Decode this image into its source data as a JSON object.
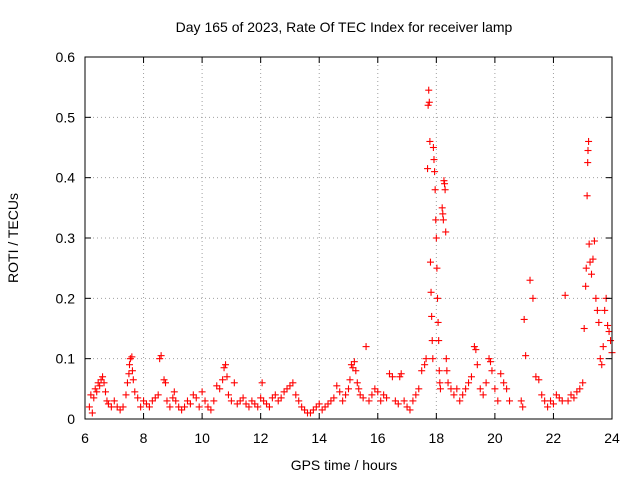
{
  "chart_data": {
    "type": "scatter",
    "title": "Day 165 of 2023, Rate Of TEC Index for receiver lamp",
    "xlabel": "GPS time / hours",
    "ylabel": "ROTI / TECUs",
    "xlim": [
      6,
      24
    ],
    "ylim": [
      0,
      0.6
    ],
    "xticks": [
      6,
      8,
      10,
      12,
      14,
      16,
      18,
      20,
      22,
      24
    ],
    "yticks": [
      0,
      0.1,
      0.2,
      0.3,
      0.4,
      0.5,
      0.6
    ],
    "xtick_labels": [
      "6",
      "8",
      "10",
      "12",
      "14",
      "16",
      "18",
      "20",
      "22",
      "24"
    ],
    "ytick_labels": [
      "0",
      "0.1",
      "0.2",
      "0.3",
      "0.4",
      "0.5",
      "0.6"
    ],
    "grid": true,
    "marker": "plus",
    "color": "#ff0000",
    "series": [
      {
        "name": "ROTI",
        "points": [
          [
            6.15,
            0.02
          ],
          [
            6.2,
            0.04
          ],
          [
            6.25,
            0.01
          ],
          [
            6.3,
            0.035
          ],
          [
            6.35,
            0.05
          ],
          [
            6.4,
            0.045
          ],
          [
            6.45,
            0.06
          ],
          [
            6.5,
            0.055
          ],
          [
            6.55,
            0.065
          ],
          [
            6.6,
            0.07
          ],
          [
            6.65,
            0.06
          ],
          [
            6.7,
            0.045
          ],
          [
            6.75,
            0.03
          ],
          [
            6.8,
            0.025
          ],
          [
            6.9,
            0.02
          ],
          [
            7.0,
            0.03
          ],
          [
            7.1,
            0.02
          ],
          [
            7.2,
            0.015
          ],
          [
            7.3,
            0.02
          ],
          [
            7.4,
            0.04
          ],
          [
            7.45,
            0.06
          ],
          [
            7.5,
            0.075
          ],
          [
            7.52,
            0.09
          ],
          [
            7.55,
            0.1
          ],
          [
            7.6,
            0.103
          ],
          [
            7.62,
            0.08
          ],
          [
            7.65,
            0.065
          ],
          [
            7.7,
            0.045
          ],
          [
            7.8,
            0.035
          ],
          [
            7.9,
            0.02
          ],
          [
            8.0,
            0.03
          ],
          [
            8.1,
            0.025
          ],
          [
            8.2,
            0.02
          ],
          [
            8.3,
            0.03
          ],
          [
            8.4,
            0.035
          ],
          [
            8.5,
            0.04
          ],
          [
            8.55,
            0.1
          ],
          [
            8.6,
            0.105
          ],
          [
            8.7,
            0.065
          ],
          [
            8.75,
            0.06
          ],
          [
            8.8,
            0.03
          ],
          [
            8.9,
            0.02
          ],
          [
            9.0,
            0.035
          ],
          [
            9.05,
            0.045
          ],
          [
            9.1,
            0.03
          ],
          [
            9.2,
            0.02
          ],
          [
            9.3,
            0.015
          ],
          [
            9.4,
            0.02
          ],
          [
            9.5,
            0.03
          ],
          [
            9.6,
            0.025
          ],
          [
            9.7,
            0.04
          ],
          [
            9.8,
            0.035
          ],
          [
            9.9,
            0.02
          ],
          [
            10.0,
            0.045
          ],
          [
            10.1,
            0.03
          ],
          [
            10.2,
            0.02
          ],
          [
            10.3,
            0.015
          ],
          [
            10.4,
            0.03
          ],
          [
            10.5,
            0.055
          ],
          [
            10.6,
            0.05
          ],
          [
            10.7,
            0.065
          ],
          [
            10.75,
            0.085
          ],
          [
            10.8,
            0.09
          ],
          [
            10.85,
            0.07
          ],
          [
            10.9,
            0.04
          ],
          [
            11.0,
            0.03
          ],
          [
            11.1,
            0.06
          ],
          [
            11.2,
            0.025
          ],
          [
            11.3,
            0.03
          ],
          [
            11.4,
            0.035
          ],
          [
            11.5,
            0.025
          ],
          [
            11.6,
            0.02
          ],
          [
            11.7,
            0.03
          ],
          [
            11.8,
            0.025
          ],
          [
            11.9,
            0.02
          ],
          [
            12.0,
            0.035
          ],
          [
            12.05,
            0.06
          ],
          [
            12.1,
            0.03
          ],
          [
            12.2,
            0.025
          ],
          [
            12.3,
            0.02
          ],
          [
            12.4,
            0.035
          ],
          [
            12.5,
            0.04
          ],
          [
            12.6,
            0.03
          ],
          [
            12.7,
            0.035
          ],
          [
            12.8,
            0.045
          ],
          [
            12.9,
            0.05
          ],
          [
            13.0,
            0.055
          ],
          [
            13.1,
            0.06
          ],
          [
            13.2,
            0.04
          ],
          [
            13.3,
            0.03
          ],
          [
            13.4,
            0.02
          ],
          [
            13.5,
            0.015
          ],
          [
            13.6,
            0.01
          ],
          [
            13.7,
            0.01
          ],
          [
            13.8,
            0.015
          ],
          [
            13.9,
            0.02
          ],
          [
            14.0,
            0.025
          ],
          [
            14.1,
            0.015
          ],
          [
            14.2,
            0.02
          ],
          [
            14.3,
            0.025
          ],
          [
            14.4,
            0.03
          ],
          [
            14.5,
            0.035
          ],
          [
            14.6,
            0.055
          ],
          [
            14.7,
            0.045
          ],
          [
            14.8,
            0.03
          ],
          [
            14.9,
            0.04
          ],
          [
            15.0,
            0.05
          ],
          [
            15.05,
            0.065
          ],
          [
            15.1,
            0.09
          ],
          [
            15.15,
            0.085
          ],
          [
            15.2,
            0.095
          ],
          [
            15.25,
            0.08
          ],
          [
            15.3,
            0.06
          ],
          [
            15.35,
            0.05
          ],
          [
            15.4,
            0.04
          ],
          [
            15.5,
            0.035
          ],
          [
            15.6,
            0.12
          ],
          [
            15.7,
            0.03
          ],
          [
            15.8,
            0.04
          ],
          [
            15.9,
            0.05
          ],
          [
            16.0,
            0.045
          ],
          [
            16.1,
            0.03
          ],
          [
            16.2,
            0.04
          ],
          [
            16.3,
            0.035
          ],
          [
            16.4,
            0.075
          ],
          [
            16.5,
            0.07
          ],
          [
            16.6,
            0.03
          ],
          [
            16.7,
            0.025
          ],
          [
            16.75,
            0.07
          ],
          [
            16.8,
            0.075
          ],
          [
            16.9,
            0.03
          ],
          [
            17.0,
            0.02
          ],
          [
            17.1,
            0.015
          ],
          [
            17.2,
            0.03
          ],
          [
            17.3,
            0.04
          ],
          [
            17.4,
            0.05
          ],
          [
            17.5,
            0.08
          ],
          [
            17.6,
            0.09
          ],
          [
            17.65,
            0.1
          ],
          [
            17.7,
            0.415
          ],
          [
            17.72,
            0.52
          ],
          [
            17.74,
            0.545
          ],
          [
            17.76,
            0.525
          ],
          [
            17.78,
            0.46
          ],
          [
            17.8,
            0.26
          ],
          [
            17.82,
            0.21
          ],
          [
            17.84,
            0.17
          ],
          [
            17.86,
            0.13
          ],
          [
            17.88,
            0.1
          ],
          [
            17.9,
            0.45
          ],
          [
            17.92,
            0.43
          ],
          [
            17.94,
            0.41
          ],
          [
            17.96,
            0.38
          ],
          [
            17.98,
            0.33
          ],
          [
            18.0,
            0.3
          ],
          [
            18.02,
            0.25
          ],
          [
            18.04,
            0.2
          ],
          [
            18.06,
            0.16
          ],
          [
            18.08,
            0.13
          ],
          [
            18.1,
            0.08
          ],
          [
            18.12,
            0.06
          ],
          [
            18.14,
            0.05
          ],
          [
            18.2,
            0.35
          ],
          [
            18.22,
            0.34
          ],
          [
            18.24,
            0.33
          ],
          [
            18.26,
            0.395
          ],
          [
            18.28,
            0.39
          ],
          [
            18.3,
            0.38
          ],
          [
            18.32,
            0.31
          ],
          [
            18.34,
            0.1
          ],
          [
            18.36,
            0.08
          ],
          [
            18.4,
            0.06
          ],
          [
            18.5,
            0.05
          ],
          [
            18.6,
            0.04
          ],
          [
            18.7,
            0.05
          ],
          [
            18.8,
            0.03
          ],
          [
            18.9,
            0.04
          ],
          [
            19.0,
            0.05
          ],
          [
            19.1,
            0.06
          ],
          [
            19.2,
            0.07
          ],
          [
            19.3,
            0.12
          ],
          [
            19.35,
            0.115
          ],
          [
            19.4,
            0.09
          ],
          [
            19.5,
            0.05
          ],
          [
            19.6,
            0.04
          ],
          [
            19.7,
            0.06
          ],
          [
            19.8,
            0.1
          ],
          [
            19.85,
            0.095
          ],
          [
            19.9,
            0.08
          ],
          [
            20.0,
            0.05
          ],
          [
            20.1,
            0.03
          ],
          [
            20.2,
            0.075
          ],
          [
            20.3,
            0.06
          ],
          [
            20.4,
            0.05
          ],
          [
            20.5,
            0.03
          ],
          [
            20.9,
            0.03
          ],
          [
            20.95,
            0.02
          ],
          [
            21.0,
            0.165
          ],
          [
            21.05,
            0.105
          ],
          [
            21.2,
            0.23
          ],
          [
            21.3,
            0.2
          ],
          [
            21.4,
            0.07
          ],
          [
            21.5,
            0.065
          ],
          [
            21.6,
            0.04
          ],
          [
            21.7,
            0.03
          ],
          [
            21.8,
            0.02
          ],
          [
            21.9,
            0.03
          ],
          [
            22.0,
            0.025
          ],
          [
            22.1,
            0.04
          ],
          [
            22.2,
            0.035
          ],
          [
            22.3,
            0.03
          ],
          [
            22.4,
            0.205
          ],
          [
            22.5,
            0.03
          ],
          [
            22.6,
            0.04
          ],
          [
            22.7,
            0.035
          ],
          [
            22.8,
            0.045
          ],
          [
            22.9,
            0.05
          ],
          [
            23.0,
            0.06
          ],
          [
            23.05,
            0.15
          ],
          [
            23.1,
            0.22
          ],
          [
            23.12,
            0.25
          ],
          [
            23.15,
            0.37
          ],
          [
            23.17,
            0.425
          ],
          [
            23.18,
            0.445
          ],
          [
            23.2,
            0.46
          ],
          [
            23.22,
            0.29
          ],
          [
            23.25,
            0.26
          ],
          [
            23.3,
            0.24
          ],
          [
            23.35,
            0.265
          ],
          [
            23.4,
            0.295
          ],
          [
            23.45,
            0.2
          ],
          [
            23.5,
            0.18
          ],
          [
            23.55,
            0.16
          ],
          [
            23.6,
            0.1
          ],
          [
            23.65,
            0.09
          ],
          [
            23.7,
            0.12
          ],
          [
            23.75,
            0.18
          ],
          [
            23.8,
            0.2
          ],
          [
            23.85,
            0.155
          ],
          [
            23.9,
            0.145
          ],
          [
            23.95,
            0.13
          ],
          [
            24.0,
            0.11
          ]
        ]
      }
    ]
  }
}
